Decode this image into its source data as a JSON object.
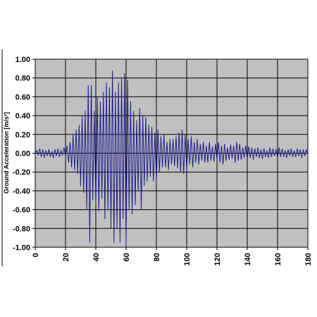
{
  "chart_data": {
    "type": "line",
    "y_label": "Ground Acceleration  [m/s²]",
    "x": [
      0,
      1,
      2,
      3,
      4,
      5,
      6,
      7,
      8,
      9,
      10,
      11,
      12,
      13,
      14,
      15,
      16,
      17,
      18,
      19,
      20,
      21,
      22,
      23,
      24,
      25,
      26,
      27,
      28,
      29,
      30,
      31,
      32,
      33,
      34,
      35,
      36,
      37,
      38,
      39,
      40,
      41,
      42,
      43,
      44,
      45,
      46,
      47,
      48,
      49,
      50,
      51,
      52,
      53,
      54,
      55,
      56,
      57,
      58,
      59,
      60,
      61,
      62,
      63,
      64,
      65,
      66,
      67,
      68,
      69,
      70,
      71,
      72,
      73,
      74,
      75,
      76,
      77,
      78,
      79,
      80,
      81,
      82,
      83,
      84,
      85,
      86,
      87,
      88,
      89,
      90,
      91,
      92,
      93,
      94,
      95,
      96,
      97,
      98,
      99,
      100,
      101,
      102,
      103,
      104,
      105,
      106,
      107,
      108,
      109,
      110,
      111,
      112,
      113,
      114,
      115,
      116,
      117,
      118,
      119,
      120,
      121,
      122,
      123,
      124,
      125,
      126,
      127,
      128,
      129,
      130,
      131,
      132,
      133,
      134,
      135,
      136,
      137,
      138,
      139,
      140,
      141,
      142,
      143,
      144,
      145,
      146,
      147,
      148,
      149,
      150,
      151,
      152,
      153,
      154,
      155,
      156,
      157,
      158,
      159,
      160,
      161,
      162,
      163,
      164,
      165,
      166,
      167,
      168,
      169,
      170,
      171,
      172,
      173,
      174,
      175,
      176,
      177,
      178,
      179,
      180
    ],
    "series": [
      {
        "color": "#1f1f8a",
        "values": [
          0,
          0.03,
          -0.02,
          0.05,
          -0.04,
          0.04,
          -0.05,
          0.03,
          -0.03,
          0.04,
          -0.04,
          0.02,
          -0.05,
          0.04,
          -0.03,
          0.05,
          -0.04,
          0.03,
          -0.02,
          0.06,
          -0.04,
          0.08,
          -0.1,
          0.12,
          -0.15,
          0.2,
          -0.18,
          0.25,
          -0.22,
          0.3,
          -0.35,
          0.4,
          -0.42,
          0.45,
          -0.6,
          0.72,
          -0.95,
          0.72,
          -0.5,
          0.45,
          -0.55,
          0.6,
          -0.62,
          0.55,
          -0.48,
          0.65,
          -0.7,
          0.75,
          -0.6,
          0.7,
          -0.8,
          0.88,
          -0.95,
          0.65,
          -0.8,
          0.75,
          -0.95,
          0.8,
          -0.7,
          0.85,
          -0.98,
          0.78,
          -0.6,
          0.55,
          -0.65,
          0.45,
          -0.55,
          0.35,
          -0.4,
          0.48,
          -0.6,
          0.4,
          -0.35,
          0.38,
          -0.3,
          0.3,
          -0.25,
          0.28,
          -0.3,
          0.22,
          -0.3,
          0.25,
          -0.2,
          0.18,
          -0.15,
          0.2,
          -0.15,
          0.12,
          -0.18,
          0.15,
          -0.12,
          0.15,
          -0.14,
          0.18,
          -0.16,
          0.22,
          -0.2,
          0.25,
          -0.22,
          0.2,
          -0.18,
          0.15,
          -0.12,
          0.18,
          -0.15,
          0.12,
          -0.1,
          0.15,
          -0.12,
          0.1,
          -0.08,
          0.12,
          -0.1,
          0.08,
          -0.1,
          0.12,
          -0.08,
          0.07,
          -0.09,
          0.1,
          -0.07,
          0.12,
          -0.1,
          0.08,
          -0.12,
          0.1,
          -0.08,
          0.06,
          -0.07,
          0.09,
          -0.06,
          0.08,
          -0.1,
          0.12,
          -0.08,
          0.1,
          -0.07,
          0.06,
          -0.05,
          0.08,
          -0.06,
          0.07,
          -0.05,
          0.06,
          -0.07,
          0.05,
          -0.04,
          0.06,
          -0.05,
          0.04,
          -0.06,
          0.05,
          -0.04,
          0.03,
          -0.05,
          0.06,
          -0.04,
          0.05,
          -0.03,
          0.04,
          -0.05,
          0.06,
          -0.04,
          0.05,
          -0.04,
          0.03,
          -0.05,
          0.04,
          -0.03,
          0.05,
          -0.04,
          0.03,
          -0.04,
          0.05,
          -0.03,
          0.04,
          -0.05,
          0.04,
          -0.03,
          0.04,
          -0.02
        ]
      }
    ],
    "xlim": [
      0,
      180
    ],
    "xticks": [
      0,
      20,
      40,
      60,
      80,
      100,
      120,
      140,
      160,
      180
    ],
    "ylim": [
      -1,
      1
    ],
    "yticks": [
      {
        "value": 1,
        "label": "1.00"
      },
      {
        "value": 0.8,
        "label": "0.80"
      },
      {
        "value": 0.6,
        "label": "0.60"
      },
      {
        "value": 0.4,
        "label": "0.40"
      },
      {
        "value": 0.2,
        "label": "0.20"
      },
      {
        "value": 0,
        "label": "0.00"
      },
      {
        "value": -0.2,
        "label": "-0.20"
      },
      {
        "value": -0.4,
        "label": "-0.40"
      },
      {
        "value": -0.6,
        "label": "-0.60"
      },
      {
        "value": -0.8,
        "label": "-0.80"
      },
      {
        "value": -1,
        "label": "-1.00"
      }
    ],
    "grid": true,
    "plot_background": "#c0c0c0"
  }
}
